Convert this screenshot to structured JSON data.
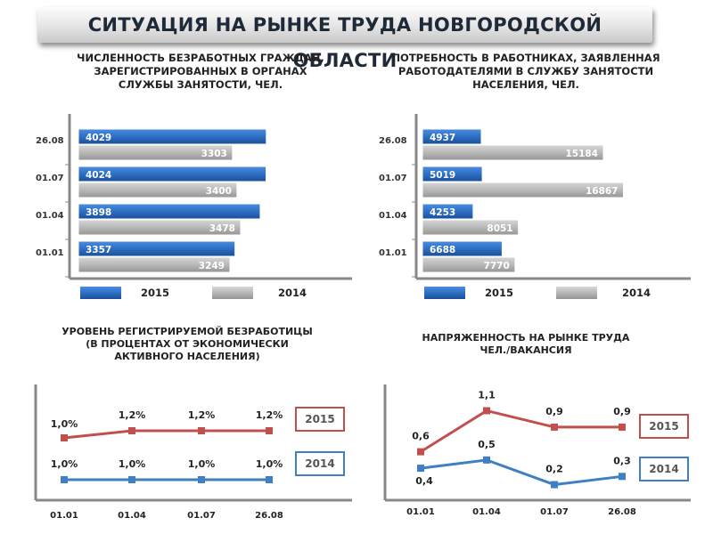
{
  "title": "СИТУАЦИЯ НА РЫНКЕ ТРУДА НОВГОРОДСКОЙ ОБЛАСТИ",
  "colors": {
    "blue": "#2e6fc3",
    "gray": "#b5b5b5",
    "red_line": "#c0504d",
    "blue_line": "#3f7fc4"
  },
  "chart_data": [
    {
      "id": "unemployed",
      "type": "bar",
      "title_lines": [
        "ЧИСЛЕННОСТЬ БЕЗРАБОТНЫХ ГРАЖДАН,",
        "ЗАРЕГИСТРИРОВАННЫХ В ОРГАНАХ",
        "СЛУЖБЫ ЗАНЯТОСТИ, ЧЕЛ."
      ],
      "categories": [
        "26.08",
        "01.07",
        "01.04",
        "01.01"
      ],
      "series": [
        {
          "name": "2015",
          "values": [
            4029,
            4024,
            3898,
            3357
          ]
        },
        {
          "name": "2014",
          "values": [
            3303,
            3400,
            3478,
            3249
          ]
        }
      ],
      "xlim": [
        0,
        4300
      ]
    },
    {
      "id": "vacancies",
      "type": "bar",
      "title_lines": [
        "ПОТРЕБНОСТЬ В РАБОТНИКАХ, ЗАЯВЛЕННАЯ",
        "РАБОТОДАТЕЛЯМИ В СЛУЖБУ ЗАНЯТОСТИ",
        "НАСЕЛЕНИЯ, ЧЕЛ."
      ],
      "categories": [
        "26.08",
        "01.07",
        "01.04",
        "01.01"
      ],
      "series": [
        {
          "name": "2015",
          "values": [
            4937,
            5019,
            4253,
            6688
          ]
        },
        {
          "name": "2014",
          "values": [
            15184,
            16867,
            8051,
            7770
          ]
        }
      ],
      "xlim": [
        0,
        18700
      ]
    },
    {
      "id": "unemployment_rate",
      "type": "line",
      "title_lines": [
        "УРОВЕНЬ РЕГИСТРИРУЕМОЙ БЕЗРАБОТИЦЫ",
        "(В ПРОЦЕНТАХ ОТ ЭКОНОМИЧЕСКИ",
        "АКТИВНОГО НАСЕЛЕНИЯ)"
      ],
      "x": [
        "01.01",
        "01.04",
        "01.07",
        "26.08"
      ],
      "series": [
        {
          "name": "2015",
          "values": [
            1.0,
            1.2,
            1.2,
            1.2
          ],
          "labels": [
            "1,0%",
            "1,2%",
            "1,2%",
            "1,2%"
          ]
        },
        {
          "name": "2014",
          "values": [
            1.0,
            1.0,
            1.0,
            1.0
          ],
          "labels": [
            "1,0%",
            "1,0%",
            "1,0%",
            "1,0%"
          ]
        }
      ]
    },
    {
      "id": "labor_tension",
      "type": "line",
      "title_lines": [
        "НАПРЯЖЕННОСТЬ  НА РЫНКЕ ТРУДА",
        "ЧЕЛ./ВАКАНСИЯ"
      ],
      "x": [
        "01.01",
        "01.04",
        "01.07",
        "26.08"
      ],
      "series": [
        {
          "name": "2015",
          "values": [
            0.6,
            1.1,
            0.9,
            0.9
          ],
          "labels": [
            "0,6",
            "1,1",
            "0,9",
            "0,9"
          ]
        },
        {
          "name": "2014",
          "values": [
            0.4,
            0.5,
            0.2,
            0.3
          ],
          "labels": [
            "0,4",
            "0,5",
            "0,2",
            "0,3"
          ]
        }
      ],
      "ylim": [
        0,
        1.3
      ]
    }
  ]
}
